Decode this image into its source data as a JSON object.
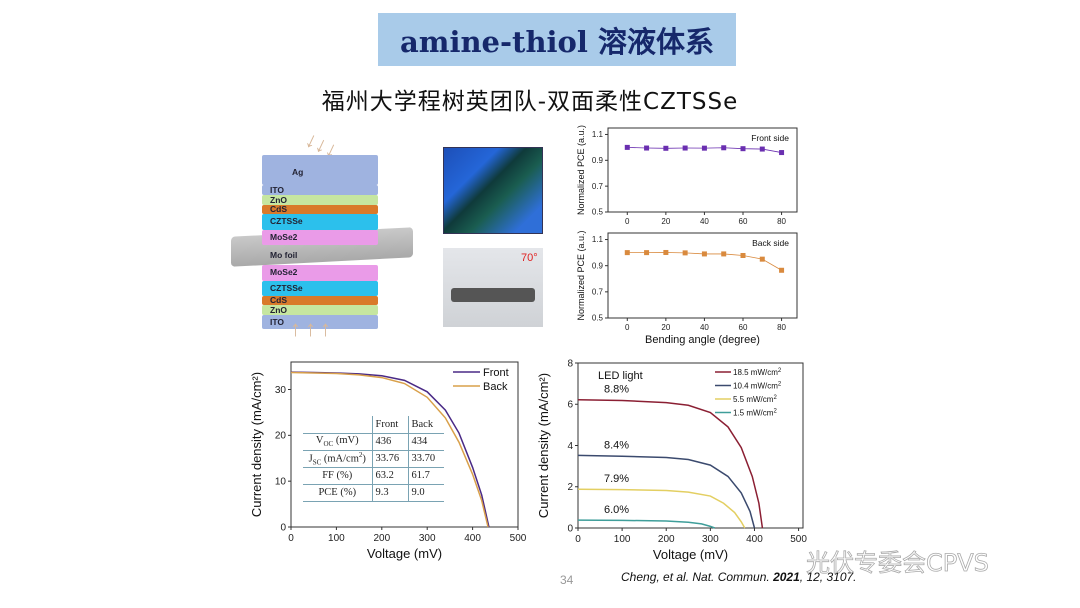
{
  "title": "amine-thiol 溶液体系",
  "subtitle": "福州大学程树英团队-双面柔性CZTSSe",
  "diagram": {
    "layers_top": [
      "Ag",
      "ITO",
      "ZnO",
      "CdS",
      "CZTSSe",
      "MoSe2"
    ],
    "foil": "Mo foil",
    "layers_bottom": [
      "MoSe2",
      "CZTSSe",
      "CdS",
      "ZnO",
      "ITO"
    ],
    "photo_angle_label": "70°"
  },
  "jv_table": {
    "headers": [
      "",
      "Front",
      "Back"
    ],
    "rows": [
      {
        "label_main": "V",
        "label_sub": "OC",
        "label_rest": " (mV)",
        "front": "436",
        "back": "434"
      },
      {
        "label_main": "J",
        "label_sub": "SC",
        "label_rest": " (mA/cm",
        "label_sup": "2",
        "label_end": ")",
        "front": "33.76",
        "back": "33.70"
      },
      {
        "label_main": "FF (%)",
        "front": "63.2",
        "back": "61.7"
      },
      {
        "label_main": "PCE (%)",
        "front": "9.3",
        "back": "9.0"
      }
    ]
  },
  "page_number": "34",
  "citation": {
    "authors": "Cheng, et al. Nat. Commun. ",
    "year": "2021",
    "rest": ", 12, 3107."
  },
  "watermark": "光伏专委会CPVS",
  "chart_data": [
    {
      "type": "line",
      "title": "",
      "annotation": "Front side",
      "color": "#6a2fb0",
      "xlabel": "",
      "ylabel": "Normalized PCE (a.u.)",
      "xlim": [
        -10,
        88
      ],
      "ylim": [
        0.5,
        1.15
      ],
      "xticks": [
        0,
        20,
        40,
        60,
        80
      ],
      "yticks": [
        0.5,
        0.7,
        0.9,
        1.1
      ],
      "series": [
        {
          "name": "Front side",
          "x": [
            0,
            10,
            20,
            30,
            40,
            50,
            60,
            70,
            80
          ],
          "y": [
            1.0,
            0.995,
            0.993,
            0.995,
            0.994,
            0.997,
            0.99,
            0.987,
            0.96
          ]
        }
      ]
    },
    {
      "type": "line",
      "title": "",
      "annotation": "Back side",
      "color": "#d98a3e",
      "xlabel": "Bending angle (degree)",
      "ylabel": "Normalized PCE (a.u.)",
      "xlim": [
        -10,
        88
      ],
      "ylim": [
        0.5,
        1.15
      ],
      "xticks": [
        0,
        20,
        40,
        60,
        80
      ],
      "yticks": [
        0.5,
        0.7,
        0.9,
        1.1
      ],
      "series": [
        {
          "name": "Back side",
          "x": [
            0,
            10,
            20,
            30,
            40,
            50,
            60,
            70,
            80
          ],
          "y": [
            1.0,
            1.0,
            1.001,
            0.998,
            0.99,
            0.99,
            0.978,
            0.95,
            0.865
          ]
        }
      ]
    },
    {
      "type": "line",
      "xlabel": "Voltage (mV)",
      "ylabel": "Current density (mA/cm²)",
      "xlim": [
        0,
        500
      ],
      "ylim": [
        0,
        36
      ],
      "xticks": [
        0,
        100,
        200,
        300,
        400,
        500
      ],
      "yticks": [
        0,
        10,
        20,
        30
      ],
      "series": [
        {
          "name": "Front",
          "color": "#4a2a86",
          "x": [
            0,
            50,
            100,
            150,
            200,
            250,
            300,
            340,
            370,
            400,
            420,
            436
          ],
          "y": [
            33.8,
            33.7,
            33.6,
            33.4,
            33.0,
            32.0,
            29.5,
            25.5,
            20.5,
            13.0,
            7.0,
            0
          ]
        },
        {
          "name": "Back",
          "color": "#d9a04a",
          "x": [
            0,
            50,
            100,
            150,
            200,
            250,
            300,
            340,
            370,
            400,
            420,
            434
          ],
          "y": [
            33.7,
            33.6,
            33.5,
            33.2,
            32.6,
            31.3,
            28.3,
            23.8,
            18.5,
            11.5,
            5.8,
            0
          ]
        }
      ]
    },
    {
      "type": "line",
      "xlabel": "Voltage (mV)",
      "ylabel": "Current density (mA/cm²)",
      "legend_title": "LED light",
      "xlim": [
        0,
        510
      ],
      "ylim": [
        0,
        8
      ],
      "xticks": [
        0,
        100,
        200,
        300,
        400,
        500
      ],
      "yticks": [
        0,
        2,
        4,
        6,
        8
      ],
      "series": [
        {
          "name": "18.5 mW/cm",
          "sup": "2",
          "pce_label": "8.8%",
          "color": "#8b1f33",
          "x": [
            0,
            100,
            200,
            250,
            300,
            340,
            370,
            395,
            410,
            418
          ],
          "y": [
            6.22,
            6.18,
            6.08,
            5.95,
            5.6,
            4.9,
            3.9,
            2.5,
            1.2,
            0
          ]
        },
        {
          "name": "10.4 mW/cm",
          "sup": "2",
          "pce_label": "8.4%",
          "color": "#3b4a6e",
          "x": [
            0,
            100,
            200,
            250,
            300,
            340,
            370,
            390,
            400
          ],
          "y": [
            3.52,
            3.48,
            3.42,
            3.32,
            3.05,
            2.5,
            1.7,
            0.8,
            0
          ]
        },
        {
          "name": "5.5 mW/cm",
          "sup": "2",
          "pce_label": "7.9%",
          "color": "#e3cf62",
          "x": [
            0,
            100,
            200,
            250,
            300,
            330,
            355,
            370,
            378
          ],
          "y": [
            1.88,
            1.86,
            1.82,
            1.74,
            1.55,
            1.2,
            0.75,
            0.3,
            0
          ]
        },
        {
          "name": "1.5 mW/cm",
          "sup": "2",
          "pce_label": "6.0%",
          "color": "#3f9e9a",
          "x": [
            0,
            100,
            200,
            250,
            280,
            300,
            310
          ],
          "y": [
            0.38,
            0.37,
            0.34,
            0.28,
            0.2,
            0.08,
            0
          ]
        }
      ]
    }
  ]
}
